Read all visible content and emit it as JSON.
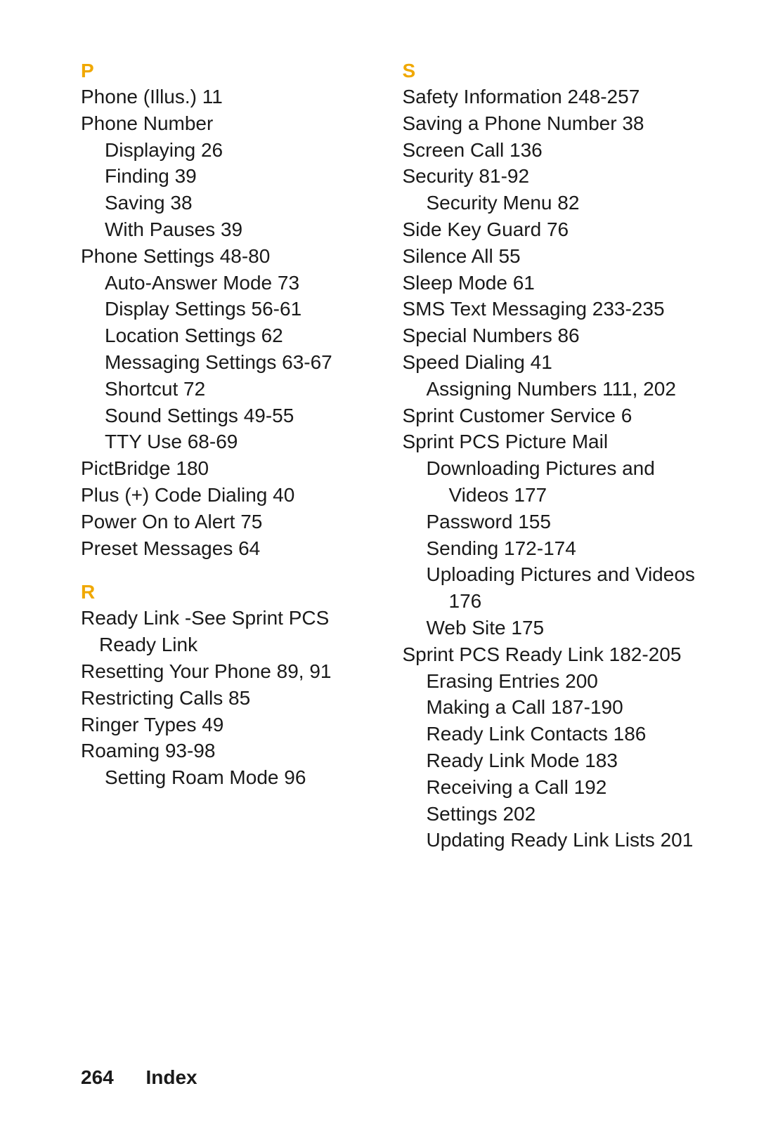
{
  "colors": {
    "letter_color": "#f0a800",
    "text_color": "#1a1a1a",
    "background": "#ffffff"
  },
  "typography": {
    "body_fontsize": 28,
    "letter_fontsize": 28,
    "line_height": 1.35
  },
  "footer": {
    "page_number": "264",
    "title": "Index"
  },
  "columns": [
    {
      "sections": [
        {
          "letter": "P",
          "entries": [
            {
              "lvl": 0,
              "text": "Phone (Illus.) 11"
            },
            {
              "lvl": 0,
              "text": "Phone Number"
            },
            {
              "lvl": 1,
              "text": "Displaying 26"
            },
            {
              "lvl": 1,
              "text": "Finding 39"
            },
            {
              "lvl": 1,
              "text": "Saving 38"
            },
            {
              "lvl": 1,
              "text": "With Pauses 39"
            },
            {
              "lvl": 0,
              "text": "Phone Settings 48-80"
            },
            {
              "lvl": 1,
              "text": "Auto-Answer Mode 73"
            },
            {
              "lvl": 1,
              "text": "Display Settings 56-61"
            },
            {
              "lvl": 1,
              "text": "Location Settings 62"
            },
            {
              "lvl": 1,
              "text": "Messaging Settings 63-67"
            },
            {
              "lvl": 1,
              "text": "Shortcut 72"
            },
            {
              "lvl": 1,
              "text": "Sound Settings 49-55"
            },
            {
              "lvl": 1,
              "text": "TTY Use 68-69"
            },
            {
              "lvl": 0,
              "text": "PictBridge 180"
            },
            {
              "lvl": 0,
              "text": "Plus (+) Code Dialing 40"
            },
            {
              "lvl": 0,
              "text": "Power On to Alert 75"
            },
            {
              "lvl": 0,
              "text": "Preset Messages 64"
            }
          ]
        },
        {
          "letter": "R",
          "entries": [
            {
              "lvl": 0,
              "text": "Ready Link -See Sprint PCS Ready Link"
            },
            {
              "lvl": 0,
              "text": "Resetting Your Phone 89, 91"
            },
            {
              "lvl": 0,
              "text": "Restricting Calls 85"
            },
            {
              "lvl": 0,
              "text": "Ringer Types 49"
            },
            {
              "lvl": 0,
              "text": "Roaming 93-98"
            },
            {
              "lvl": 1,
              "text": "Setting Roam Mode 96"
            }
          ]
        }
      ]
    },
    {
      "sections": [
        {
          "letter": "S",
          "entries": [
            {
              "lvl": 0,
              "text": "Safety Information 248-257"
            },
            {
              "lvl": 0,
              "text": "Saving a Phone Number 38"
            },
            {
              "lvl": 0,
              "text": "Screen Call 136"
            },
            {
              "lvl": 0,
              "text": "Security 81-92"
            },
            {
              "lvl": 1,
              "text": "Security Menu 82"
            },
            {
              "lvl": 0,
              "text": "Side Key Guard 76"
            },
            {
              "lvl": 0,
              "text": "Silence All 55"
            },
            {
              "lvl": 0,
              "text": "Sleep Mode 61"
            },
            {
              "lvl": 0,
              "text": "SMS Text Messaging 233-235"
            },
            {
              "lvl": 0,
              "text": "Special Numbers 86"
            },
            {
              "lvl": 0,
              "text": "Speed Dialing 41"
            },
            {
              "lvl": 1,
              "text": "Assigning Numbers 111, 202"
            },
            {
              "lvl": 0,
              "text": "Sprint Customer Service 6"
            },
            {
              "lvl": 0,
              "text": "Sprint PCS Picture Mail"
            },
            {
              "lvl": 1,
              "text": "Downloading Pictures and Videos 177"
            },
            {
              "lvl": 1,
              "text": "Password 155"
            },
            {
              "lvl": 1,
              "text": "Sending 172-174"
            },
            {
              "lvl": 1,
              "text": "Uploading Pictures and Videos 176"
            },
            {
              "lvl": 1,
              "text": "Web Site 175"
            },
            {
              "lvl": 0,
              "text": "Sprint PCS Ready Link 182-205"
            },
            {
              "lvl": 1,
              "text": "Erasing Entries 200"
            },
            {
              "lvl": 1,
              "text": "Making a Call 187-190"
            },
            {
              "lvl": 1,
              "text": "Ready Link Contacts 186"
            },
            {
              "lvl": 1,
              "text": "Ready Link Mode 183"
            },
            {
              "lvl": 1,
              "text": "Receiving a Call 192"
            },
            {
              "lvl": 1,
              "text": "Settings 202"
            },
            {
              "lvl": 1,
              "text": "Updating Ready Link Lists 201"
            }
          ]
        }
      ]
    }
  ]
}
